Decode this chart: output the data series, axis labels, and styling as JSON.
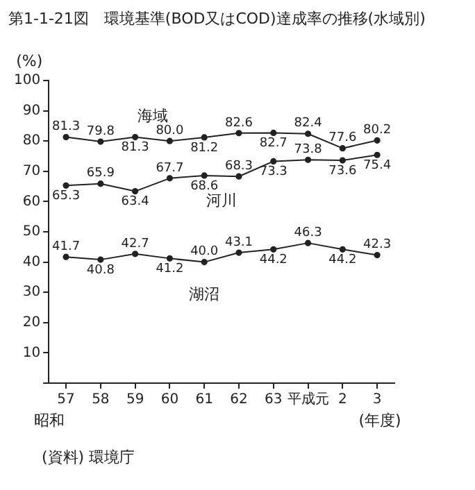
{
  "chart_data": {
    "type": "line",
    "title": "第1-1-21図　環境基準(BOD又はCOD)達成率の推移(水域別)",
    "ylabel": "(%)",
    "xlabel": "(年度)",
    "categories": [
      "57",
      "58",
      "59",
      "60",
      "61",
      "62",
      "63",
      "平成元",
      "2",
      "3"
    ],
    "series": [
      {
        "name": "海域",
        "color": "#222222",
        "values": [
          81.3,
          79.8,
          81.3,
          80.0,
          81.2,
          82.6,
          82.7,
          82.4,
          77.6,
          80.2
        ],
        "value_labels": [
          "81.3",
          "79.8",
          "81.3",
          "80.0",
          "81.2",
          "82.6",
          "82.7",
          "82.4",
          "77.6",
          "80.2"
        ]
      },
      {
        "name": "河川",
        "color": "#222222",
        "values": [
          65.3,
          65.9,
          63.4,
          67.7,
          68.6,
          68.3,
          73.3,
          73.8,
          73.6,
          75.4
        ],
        "value_labels": [
          "65.3",
          "65.9",
          "63.4",
          "67.7",
          "68.6",
          "68.3",
          "73.3",
          "73.8",
          "73.6",
          "75.4"
        ]
      },
      {
        "name": "湖沼",
        "color": "#222222",
        "values": [
          41.7,
          40.8,
          42.7,
          41.2,
          40.0,
          43.1,
          44.2,
          46.3,
          44.2,
          42.3
        ],
        "value_labels": [
          "41.7",
          "40.8",
          "42.7",
          "41.2",
          "40.0",
          "43.1",
          "44.2",
          "46.3",
          "44.2",
          "42.3"
        ]
      }
    ],
    "ylim": [
      0,
      100
    ],
    "yticks": [
      {
        "value": 0,
        "label": null
      },
      10,
      20,
      30,
      40,
      50,
      60,
      70,
      80,
      90,
      100
    ],
    "grid": false,
    "legend": false,
    "marker": "circle",
    "line_style": "solid",
    "annotations": [
      "昭和",
      "(資料) 環境庁"
    ]
  }
}
